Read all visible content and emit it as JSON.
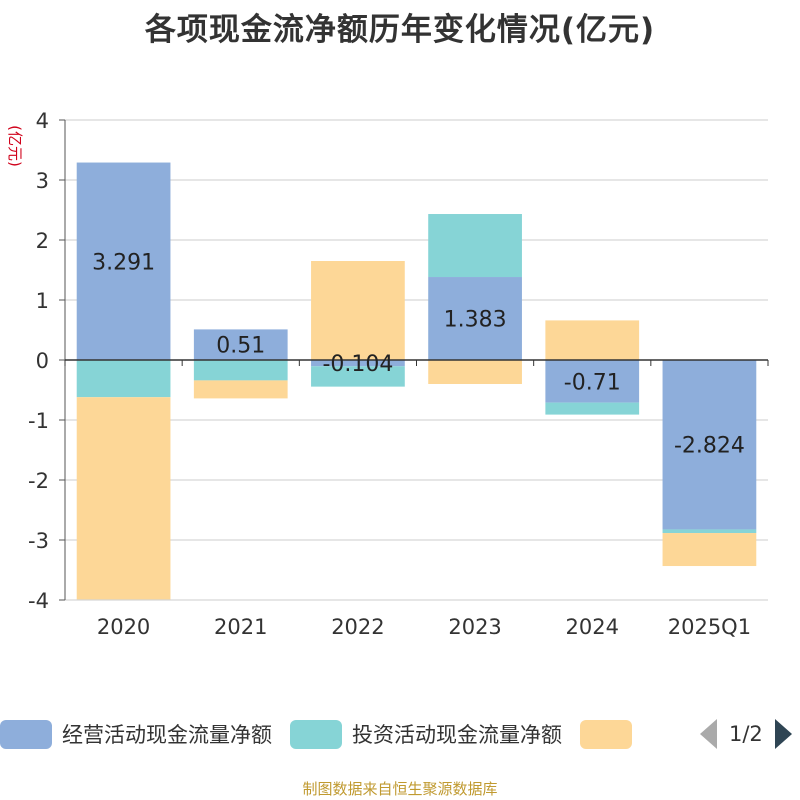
{
  "title": "各项现金流净额历年变化情况(亿元)",
  "source": "制图数据来自恒生聚源数据库",
  "pager": "1/2",
  "chart_data": {
    "type": "bar",
    "stacked": true,
    "categories": [
      "2020",
      "2021",
      "2022",
      "2023",
      "2024",
      "2025Q1"
    ],
    "ylabel": "(亿元)",
    "ylim": [
      -4,
      4
    ],
    "yticks": [
      "4",
      "3",
      "2",
      "1",
      "0",
      "-1",
      "-2",
      "-3",
      "-4"
    ],
    "grid": true,
    "legend_position": "bottom",
    "series": [
      {
        "name": "经营活动现金流量净额",
        "color": "#8eaedb",
        "values": [
          3.291,
          0.51,
          -0.104,
          1.383,
          -0.71,
          -2.824
        ],
        "labels": [
          "3.291",
          "0.51",
          "-0.104",
          "1.383",
          "-0.71",
          "-2.824"
        ]
      },
      {
        "name": "投资活动现金流量净额",
        "color": "#86d4d6",
        "values": [
          -0.62,
          -0.34,
          -0.34,
          1.05,
          -0.2,
          -0.06
        ]
      },
      {
        "name": "",
        "color": "#fdd797",
        "values": [
          -3.37,
          -0.3,
          1.65,
          -0.4,
          0.66,
          -0.55
        ]
      }
    ]
  }
}
